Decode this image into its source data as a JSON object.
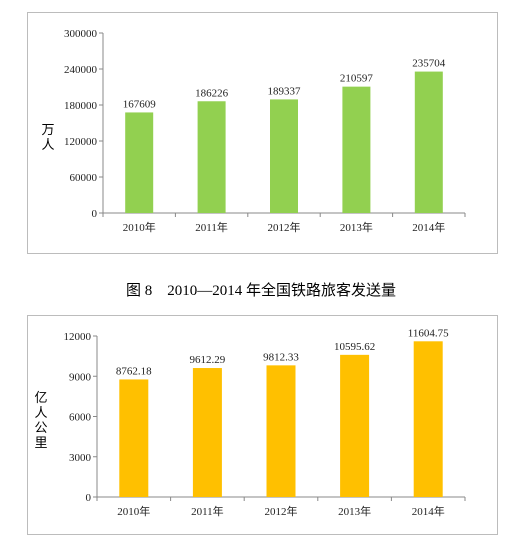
{
  "caption": "图 8　2010—2014 年全国铁路旅客发送量",
  "chart_data": [
    {
      "type": "bar",
      "categories": [
        "2010年",
        "2011年",
        "2012年",
        "2013年",
        "2014年"
      ],
      "values": [
        167609,
        186226,
        189337,
        210597,
        235704
      ],
      "ylabel": "万人",
      "ylim": [
        0,
        300000
      ],
      "yticks": [
        0,
        60000,
        120000,
        180000,
        240000,
        300000
      ],
      "color": "#92d050",
      "data_labels": true,
      "grid": false
    },
    {
      "type": "bar",
      "categories": [
        "2010年",
        "2011年",
        "2012年",
        "2013年",
        "2014年"
      ],
      "values": [
        8762.18,
        9612.29,
        9812.33,
        10595.62,
        11604.75
      ],
      "value_labels": [
        "8762.18",
        "9612.29",
        "9812.33",
        "10595.62",
        "11604.75"
      ],
      "ylabel": "亿人公里",
      "ylim": [
        0,
        12000
      ],
      "yticks": [
        0,
        3000,
        6000,
        9000,
        12000
      ],
      "color": "#ffc000",
      "data_labels": true,
      "grid": false
    }
  ]
}
